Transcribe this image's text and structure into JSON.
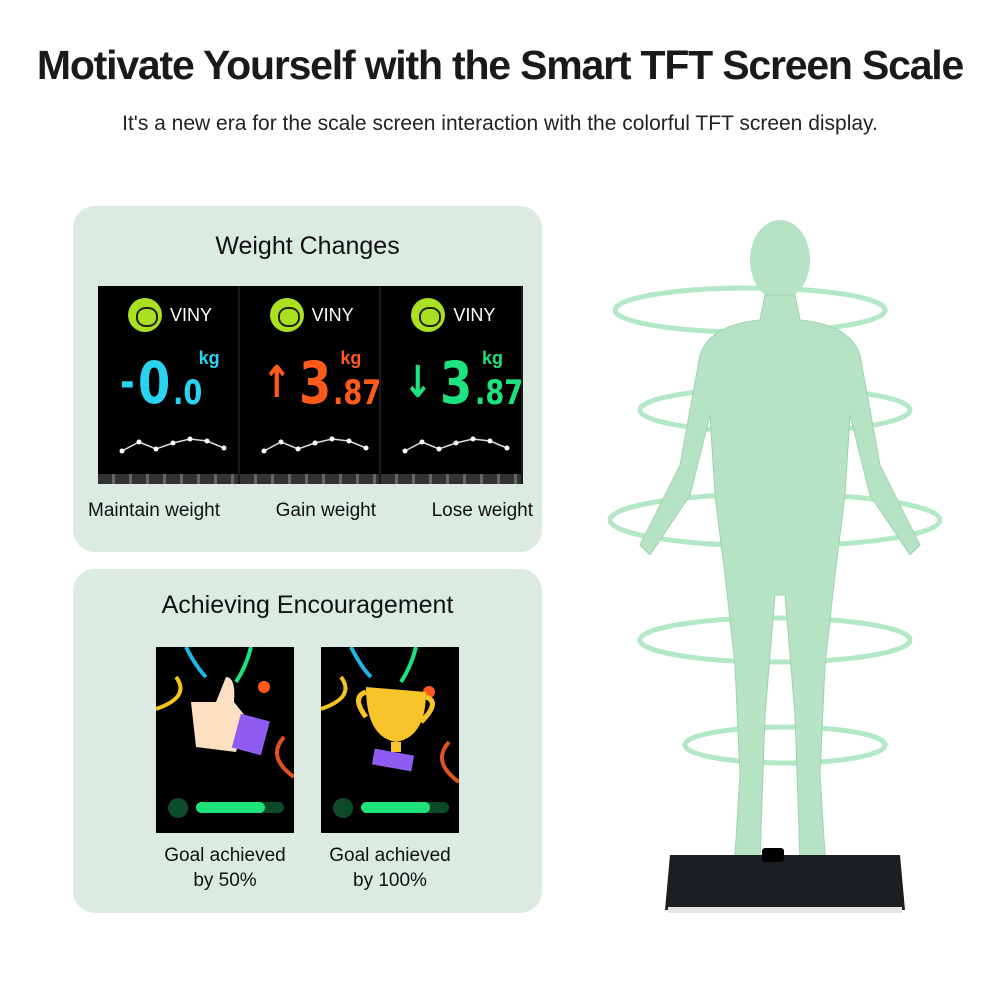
{
  "header": {
    "title": "Motivate Yourself with the Smart TFT Screen Scale",
    "subtitle": "It's a new era for the scale screen interaction with the colorful TFT screen display."
  },
  "weight_changes": {
    "title": "Weight Changes",
    "screens": [
      {
        "brand": "VINY",
        "sign": "-",
        "int": "0",
        "dec": ".0",
        "unit": "kg",
        "color": "#2ad4f0",
        "label": "Maintain weight",
        "arrow": "none"
      },
      {
        "brand": "VINY",
        "sign": "↑",
        "int": "3",
        "dec": ".87",
        "unit": "kg",
        "color": "#ff5a1c",
        "label": "Gain weight",
        "arrow": "up"
      },
      {
        "brand": "VINY",
        "sign": "↓",
        "int": "3",
        "dec": ".87",
        "unit": "kg",
        "color": "#1de37f",
        "label": "Lose weight",
        "arrow": "down"
      }
    ]
  },
  "encouragement": {
    "title": "Achieving Encouragement",
    "items": [
      {
        "icon": "thumbs-up-icon",
        "label1": "Goal achieved",
        "label2": "by 50%",
        "progress": 0.78
      },
      {
        "icon": "trophy-icon",
        "label1": "Goal achieved",
        "label2": "by 100%",
        "progress": 0.78
      }
    ]
  }
}
